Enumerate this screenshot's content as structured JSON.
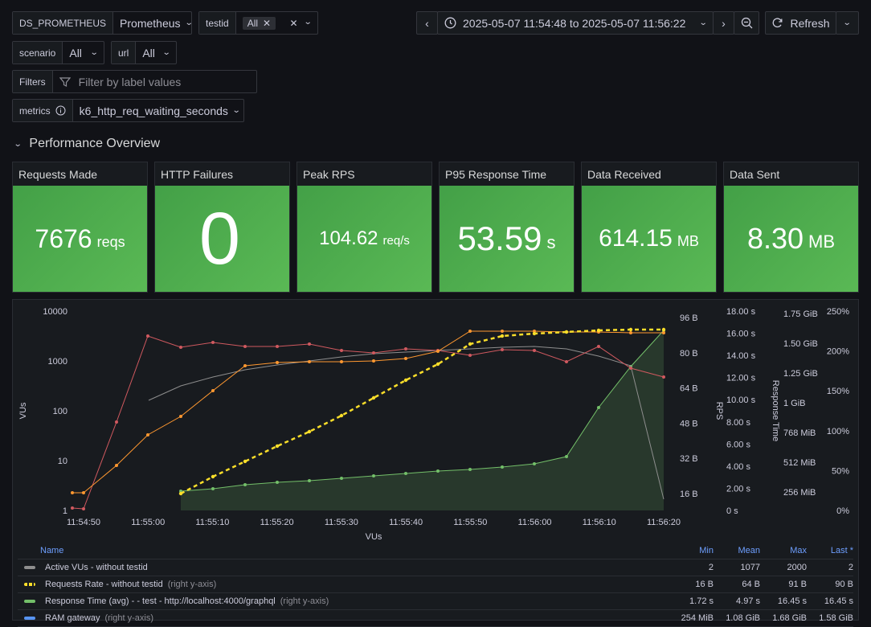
{
  "vars": {
    "ds_label": "DS_PROMETHEUS",
    "ds_value": "Prometheus",
    "testid_label": "testid",
    "testid_chip": "All",
    "scenario_label": "scenario",
    "scenario_value": "All",
    "url_label": "url",
    "url_value": "All",
    "filters_label": "Filters",
    "filters_placeholder": "Filter by label values",
    "metrics_label": "metrics",
    "metrics_value": "k6_http_req_waiting_seconds"
  },
  "toolbar": {
    "time_range": "2025-05-07 11:54:48 to 2025-05-07 11:56:22",
    "refresh_label": "Refresh"
  },
  "section": {
    "title": "Performance Overview"
  },
  "stats": [
    {
      "title": "Requests Made",
      "value": "7676",
      "unit": "reqs"
    },
    {
      "title": "HTTP Failures",
      "value": "0",
      "unit": ""
    },
    {
      "title": "Peak RPS",
      "value": "104.62",
      "unit": "req/s"
    },
    {
      "title": "P95 Response Time",
      "value": "53.59",
      "unit": "s"
    },
    {
      "title": "Data Received",
      "value": "614.15",
      "unit": "MB"
    },
    {
      "title": "Data Sent",
      "value": "8.30",
      "unit": "MB"
    }
  ],
  "chart_data": {
    "type": "line",
    "xlabel": "VUs",
    "ylabel_left": "VUs",
    "ylabel_rps": "RPS",
    "ylabel_rt": "Response Time",
    "x_ticks": [
      "11:54:50",
      "11:55:00",
      "11:55:10",
      "11:55:20",
      "11:55:30",
      "11:55:40",
      "11:55:50",
      "11:56:00",
      "11:56:10",
      "11:56:20"
    ],
    "y_left_ticks": [
      "10000",
      "1000",
      "100",
      "10",
      "1"
    ],
    "y_bytes_ticks": [
      "96 B",
      "80 B",
      "64 B",
      "48 B",
      "32 B",
      "16 B"
    ],
    "y_seconds_ticks": [
      "18.00 s",
      "16.00 s",
      "14.00 s",
      "12.00 s",
      "10.00 s",
      "8.00 s",
      "6.00 s",
      "4.00 s",
      "2.00 s",
      "0 s"
    ],
    "y_gib_ticks": [
      "1.75 GiB",
      "1.50 GiB",
      "1.25 GiB",
      "1 GiB",
      "768 MiB",
      "512 MiB",
      "256 MiB"
    ],
    "y_pct_ticks": [
      "250%",
      "200%",
      "150%",
      "100%",
      "50%",
      "0%"
    ],
    "series_colors": {
      "active_vus": "#8e8e8e",
      "requests_rate": "#fade2a",
      "response_time": "#73bf69",
      "red": "#d0595f",
      "orange": "#ff9830"
    },
    "legend": {
      "headers": [
        "Name",
        "Min",
        "Mean",
        "Max",
        "Last *"
      ],
      "rows": [
        {
          "name": "Active VUs - without testid",
          "suffix": "",
          "color": "#8e8e8e",
          "dashed": false,
          "min": "2",
          "mean": "1077",
          "max": "2000",
          "last": "2"
        },
        {
          "name": "Requests Rate - without testid",
          "suffix": "(right y-axis)",
          "color": "#fade2a",
          "dashed": true,
          "min": "16 B",
          "mean": "64 B",
          "max": "91 B",
          "last": "90 B"
        },
        {
          "name": "Response Time (avg) - - test - http://localhost:4000/graphql",
          "suffix": "(right y-axis)",
          "color": "#73bf69",
          "dashed": false,
          "min": "1.72 s",
          "mean": "4.97 s",
          "max": "16.45 s",
          "last": "16.45 s"
        },
        {
          "name": "RAM gateway",
          "suffix": "(right y-axis)",
          "color": "#5794f2",
          "dashed": false,
          "min": "254 MiB",
          "mean": "1.08 GiB",
          "max": "1.68 GiB",
          "last": "1.58 GiB"
        }
      ]
    }
  }
}
